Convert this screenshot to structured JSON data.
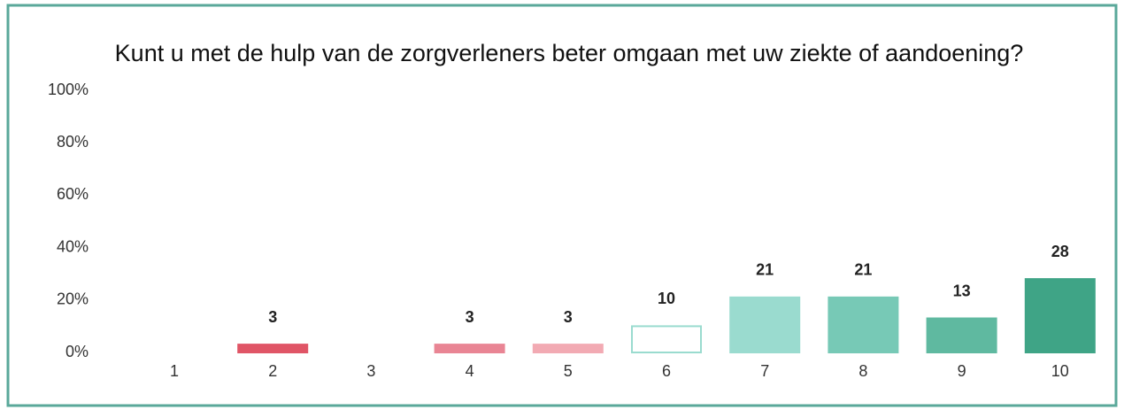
{
  "chart_data": {
    "type": "bar",
    "title": "Kunt u met de hulp van de zorgverleners beter omgaan met uw ziekte of aandoening?",
    "categories": [
      "1",
      "2",
      "3",
      "4",
      "5",
      "6",
      "7",
      "8",
      "9",
      "10"
    ],
    "values": [
      null,
      3,
      null,
      3,
      3,
      10,
      21,
      21,
      13,
      28
    ],
    "colors": [
      null,
      "#e05566",
      null,
      "#e98594",
      "#f2aab3",
      "#ffffff",
      "#9adbcf",
      "#77c9b6",
      "#5fb9a0",
      "#3fa486"
    ],
    "ylim": [
      0,
      100
    ],
    "yticks": [
      {
        "value": 0,
        "label": "0%"
      },
      {
        "value": 20,
        "label": "20%"
      },
      {
        "value": 40,
        "label": "40%"
      },
      {
        "value": 60,
        "label": "60%"
      },
      {
        "value": 80,
        "label": "80%"
      },
      {
        "value": 100,
        "label": "100%"
      }
    ],
    "grid": false
  }
}
